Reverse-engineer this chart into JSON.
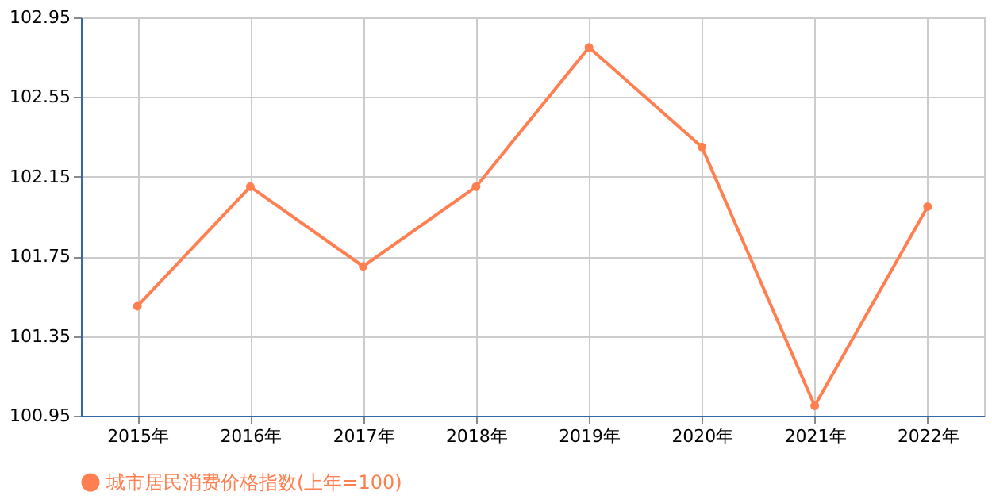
{
  "chart_data": {
    "type": "line",
    "categories": [
      "2015年",
      "2016年",
      "2017年",
      "2018年",
      "2019年",
      "2020年",
      "2021年",
      "2022年"
    ],
    "series": [
      {
        "name": "城市居民消费价格指数(上年=100)",
        "color": "#ff7f50",
        "values": [
          101.5,
          102.1,
          101.7,
          102.1,
          102.8,
          102.3,
          101.0,
          102.0
        ]
      }
    ],
    "ylim": [
      100.95,
      102.95
    ],
    "yticks": [
      100.95,
      101.35,
      101.75,
      102.15,
      102.55,
      102.95
    ],
    "grid": true,
    "legend": "bottom",
    "marker": "circle",
    "line_style": "solid"
  }
}
